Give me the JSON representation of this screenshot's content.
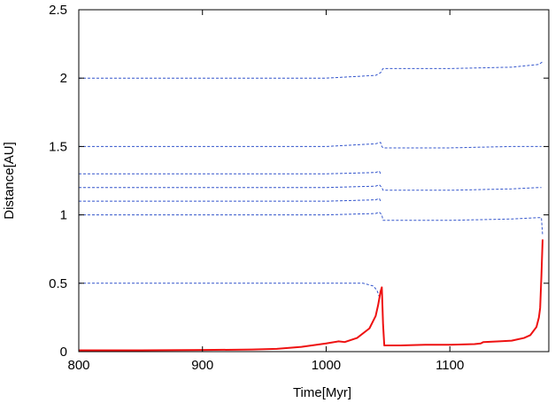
{
  "chart_data": {
    "type": "line",
    "title": "",
    "xlabel": "Time[Myr]",
    "ylabel": "Distance[AU]",
    "xlim": [
      800,
      1180
    ],
    "ylim": [
      0,
      2.5
    ],
    "x_ticks": [
      800,
      900,
      1000,
      1100
    ],
    "x_tick_labels": [
      "800",
      "900",
      "1000",
      "1100"
    ],
    "y_ticks": [
      0,
      0.5,
      1,
      1.5,
      2,
      2.5
    ],
    "y_tick_labels": [
      "0",
      "0.5",
      "1",
      "1.5",
      "2",
      "2.5"
    ],
    "grid": false,
    "legend": "none",
    "colors": {
      "planets": "#3355cc",
      "highlight": "#ee1111",
      "axes": "#000000"
    },
    "series": [
      {
        "style": "dashed",
        "color": "#3355cc",
        "x": [
          800,
          1000,
          1040,
          1044,
          1046,
          1100,
          1150,
          1172,
          1175
        ],
        "y": [
          2.0,
          2.0,
          2.02,
          2.04,
          2.07,
          2.07,
          2.08,
          2.1,
          2.12
        ]
      },
      {
        "style": "dashed",
        "color": "#3355cc",
        "x": [
          800,
          1000,
          1040,
          1044,
          1045,
          1046,
          1100,
          1150,
          1172,
          1174
        ],
        "y": [
          1.5,
          1.5,
          1.52,
          1.53,
          1.5,
          1.49,
          1.49,
          1.5,
          1.5,
          1.5
        ]
      },
      {
        "style": "dashed",
        "color": "#3355cc",
        "x": [
          800,
          1000,
          1040,
          1043,
          1044
        ],
        "y": [
          1.3,
          1.3,
          1.31,
          1.32,
          1.3
        ]
      },
      {
        "style": "dashed",
        "color": "#3355cc",
        "x": [
          800,
          1000,
          1040,
          1043,
          1045,
          1046,
          1100,
          1150,
          1172,
          1174
        ],
        "y": [
          1.2,
          1.2,
          1.21,
          1.22,
          1.2,
          1.18,
          1.18,
          1.19,
          1.2,
          1.2
        ]
      },
      {
        "style": "dashed",
        "color": "#3355cc",
        "x": [
          800,
          1000,
          1040,
          1043,
          1044
        ],
        "y": [
          1.1,
          1.1,
          1.11,
          1.12,
          1.1
        ]
      },
      {
        "style": "dashed",
        "color": "#3355cc",
        "x": [
          800,
          1000,
          1040,
          1043,
          1045,
          1046,
          1100,
          1150,
          1172,
          1174,
          1175
        ],
        "y": [
          1.0,
          1.0,
          1.01,
          1.02,
          1.0,
          0.96,
          0.96,
          0.97,
          0.98,
          0.98,
          0.85
        ]
      },
      {
        "style": "dashed",
        "color": "#3355cc",
        "x": [
          800,
          1000,
          1030,
          1038,
          1041,
          1043
        ],
        "y": [
          0.5,
          0.5,
          0.5,
          0.48,
          0.45,
          0.4
        ]
      },
      {
        "style": "solid",
        "color": "#ee1111",
        "x": [
          800,
          850,
          900,
          940,
          960,
          980,
          1000,
          1010,
          1015,
          1025,
          1035,
          1040,
          1042,
          1044,
          1045,
          1046,
          1047,
          1060,
          1080,
          1100,
          1120,
          1125,
          1127,
          1140,
          1150,
          1160,
          1165,
          1170,
          1172,
          1173,
          1174,
          1175
        ],
        "y": [
          0.01,
          0.01,
          0.012,
          0.015,
          0.02,
          0.035,
          0.06,
          0.075,
          0.07,
          0.1,
          0.17,
          0.26,
          0.34,
          0.44,
          0.47,
          0.2,
          0.045,
          0.045,
          0.05,
          0.05,
          0.055,
          0.06,
          0.07,
          0.075,
          0.08,
          0.1,
          0.12,
          0.18,
          0.25,
          0.32,
          0.55,
          0.82
        ]
      }
    ]
  }
}
